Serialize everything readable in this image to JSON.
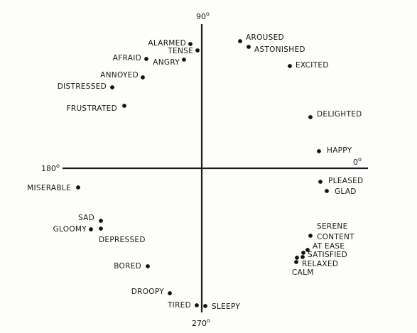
{
  "diagram": {
    "axis_labels": {
      "deg0": "0",
      "deg90": "90",
      "deg180": "180",
      "deg270": "270",
      "degree_symbol": "o"
    },
    "emotions": [
      {
        "word": "ALARMED"
      },
      {
        "word": "TENSE"
      },
      {
        "word": "AFRAID"
      },
      {
        "word": "ANGRY"
      },
      {
        "word": "ANNOYED"
      },
      {
        "word": "DISTRESSED"
      },
      {
        "word": "FRUSTRATED"
      },
      {
        "word": "AROUSED"
      },
      {
        "word": "ASTONISHED"
      },
      {
        "word": "EXCITED"
      },
      {
        "word": "DELIGHTED"
      },
      {
        "word": "HAPPY"
      },
      {
        "word": "PLEASED"
      },
      {
        "word": "GLAD"
      },
      {
        "word": "MISERABLE"
      },
      {
        "word": "SAD"
      },
      {
        "word": "GLOOMY"
      },
      {
        "word": "DEPRESSED"
      },
      {
        "word": "BORED"
      },
      {
        "word": "DROOPY"
      },
      {
        "word": "TIRED"
      },
      {
        "word": "SLEEPY"
      },
      {
        "word": "SERENE"
      },
      {
        "word": "CONTENT"
      },
      {
        "word": "AT EASE"
      },
      {
        "word": "SATISFIED"
      },
      {
        "word": "RELAXED"
      },
      {
        "word": "CALM"
      }
    ]
  }
}
